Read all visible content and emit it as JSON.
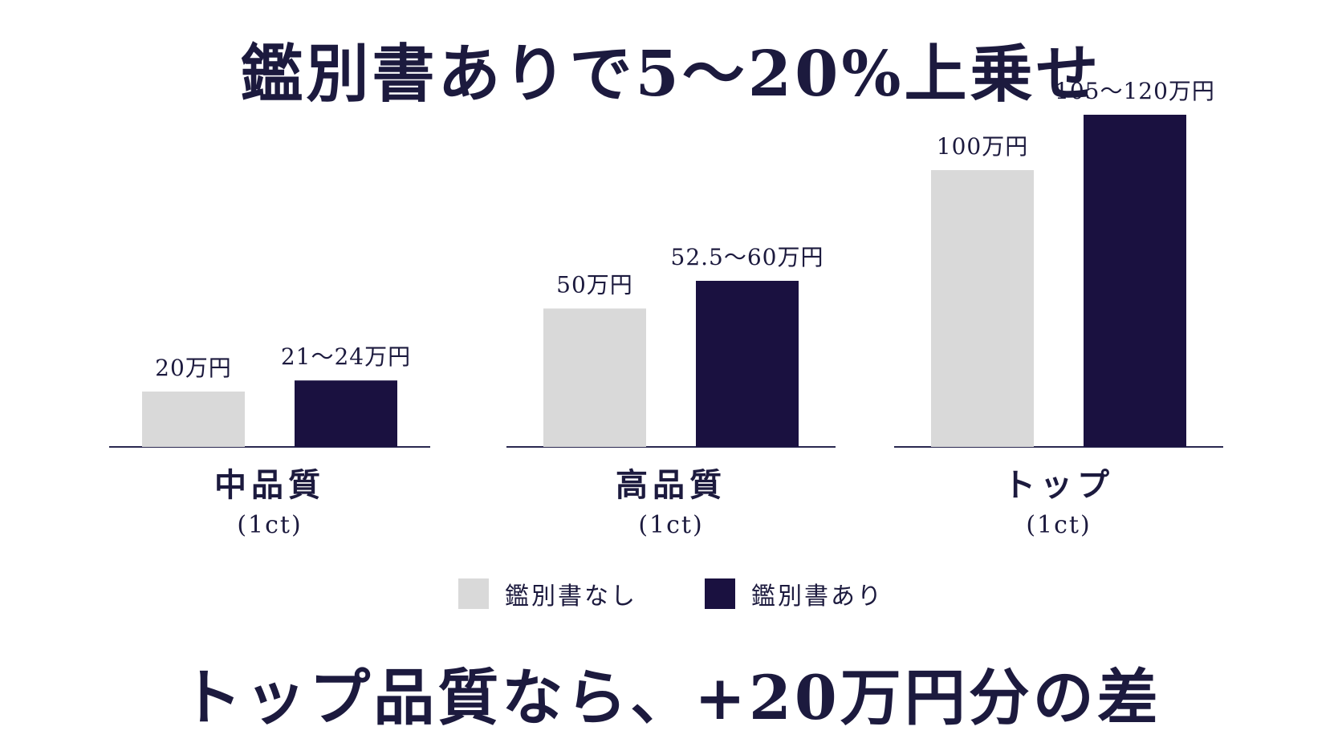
{
  "title": "鑑別書ありで5～20%上乗せ",
  "footer": "トップ品質なら、+20万円分の差",
  "colors": {
    "without": "#d9d9d9",
    "with": "#1a1140",
    "text": "#1c1a3e",
    "axis": "#2a2850"
  },
  "chart_data": {
    "type": "bar",
    "categories": [
      "中品質",
      "高品質",
      "トップ"
    ],
    "category_sublabels": [
      "(1ct)",
      "(1ct)",
      "(1ct)"
    ],
    "unit": "万円",
    "series": [
      {
        "name": "鑑別書なし",
        "values": [
          20,
          50,
          100
        ],
        "labels": [
          "20万円",
          "50万円",
          "100万円"
        ]
      },
      {
        "name": "鑑別書あり",
        "values": [
          [
            21,
            24
          ],
          [
            52.5,
            60
          ],
          [
            105,
            120
          ]
        ],
        "labels": [
          "21～24万円",
          "52.5～60万円",
          "105～120万円"
        ]
      }
    ],
    "legend_position": "bottom-center",
    "grid": false
  }
}
